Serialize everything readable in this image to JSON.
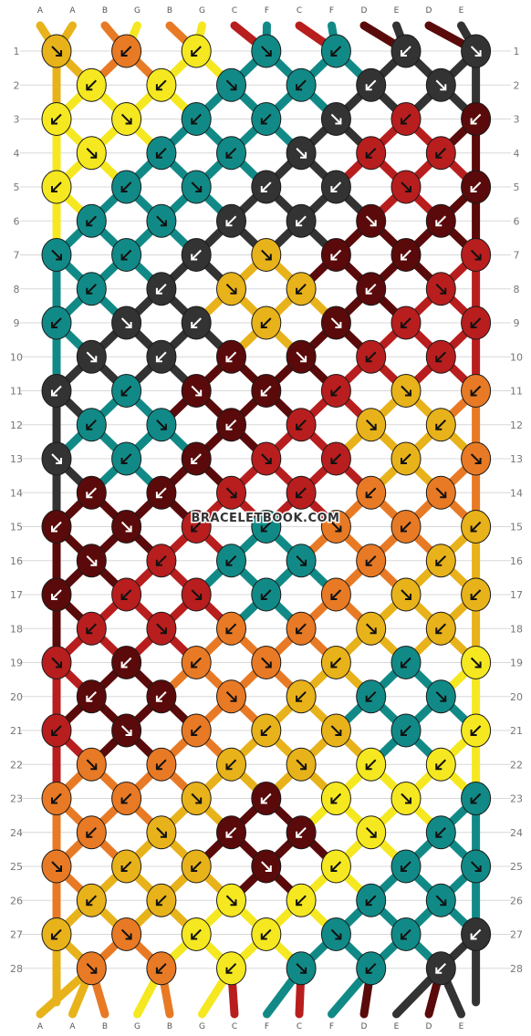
{
  "pattern": {
    "site": "BRACELETBOOK.COM",
    "strings_top": [
      "A",
      "A",
      "B",
      "G",
      "B",
      "G",
      "C",
      "F",
      "C",
      "F",
      "D",
      "E",
      "D",
      "E"
    ],
    "strings_bottom": [
      "A",
      "A",
      "B",
      "G",
      "B",
      "G",
      "C",
      "F",
      "C",
      "F",
      "D",
      "E",
      "D",
      "E"
    ],
    "rows": [
      "1",
      "2",
      "3",
      "4",
      "5",
      "6",
      "7",
      "8",
      "9",
      "10",
      "11",
      "12",
      "13",
      "14",
      "15",
      "16",
      "17",
      "18",
      "19",
      "20",
      "21",
      "22",
      "23",
      "24",
      "25",
      "26",
      "27",
      "28"
    ],
    "colors": {
      "A": "#e8b21a",
      "B": "#e87a25",
      "C": "#b81e1e",
      "D": "#5a0a0a",
      "E": "#333333",
      "F": "#118a87",
      "G": "#f5e820"
    },
    "knots": [
      [
        "A",
        "B",
        "G",
        "F",
        "F",
        "E",
        "E"
      ],
      [
        "G",
        "G",
        "F",
        "F",
        "E",
        "E"
      ],
      [
        "G",
        "G",
        "F",
        "F",
        "E",
        "C",
        "D"
      ],
      [
        "G",
        "F",
        "F",
        "E",
        "C",
        "C"
      ],
      [
        "G",
        "F",
        "F",
        "E",
        "E",
        "C",
        "D"
      ],
      [
        "F",
        "F",
        "E",
        "E",
        "D",
        "D"
      ],
      [
        "F",
        "F",
        "E",
        "A",
        "D",
        "D",
        "C"
      ],
      [
        "F",
        "E",
        "A",
        "A",
        "D",
        "C"
      ],
      [
        "F",
        "E",
        "E",
        "A",
        "D",
        "C",
        "C"
      ],
      [
        "E",
        "E",
        "D",
        "D",
        "C",
        "C"
      ],
      [
        "E",
        "F",
        "D",
        "D",
        "C",
        "A",
        "B"
      ],
      [
        "F",
        "F",
        "D",
        "C",
        "A",
        "A"
      ],
      [
        "E",
        "F",
        "D",
        "C",
        "C",
        "A",
        "B"
      ],
      [
        "D",
        "D",
        "C",
        "C",
        "B",
        "B"
      ],
      [
        "D",
        "D",
        "C",
        "F",
        "B",
        "B",
        "A"
      ],
      [
        "D",
        "C",
        "F",
        "F",
        "B",
        "A"
      ],
      [
        "D",
        "C",
        "C",
        "F",
        "B",
        "A",
        "A"
      ],
      [
        "C",
        "C",
        "B",
        "B",
        "A",
        "A"
      ],
      [
        "C",
        "D",
        "B",
        "B",
        "A",
        "F",
        "G"
      ],
      [
        "D",
        "D",
        "B",
        "A",
        "F",
        "F"
      ],
      [
        "C",
        "D",
        "B",
        "A",
        "A",
        "F",
        "G"
      ],
      [
        "B",
        "B",
        "A",
        "A",
        "G",
        "G"
      ],
      [
        "B",
        "B",
        "A",
        "D",
        "G",
        "G",
        "F"
      ],
      [
        "B",
        "A",
        "D",
        "D",
        "G",
        "F"
      ],
      [
        "B",
        "A",
        "A",
        "D",
        "G",
        "F",
        "F"
      ],
      [
        "A",
        "A",
        "G",
        "G",
        "F",
        "F"
      ],
      [
        "A",
        "B",
        "G",
        "G",
        "F",
        "F",
        "E"
      ],
      [
        "B",
        "B",
        "G",
        "F",
        "F",
        "E"
      ]
    ]
  }
}
